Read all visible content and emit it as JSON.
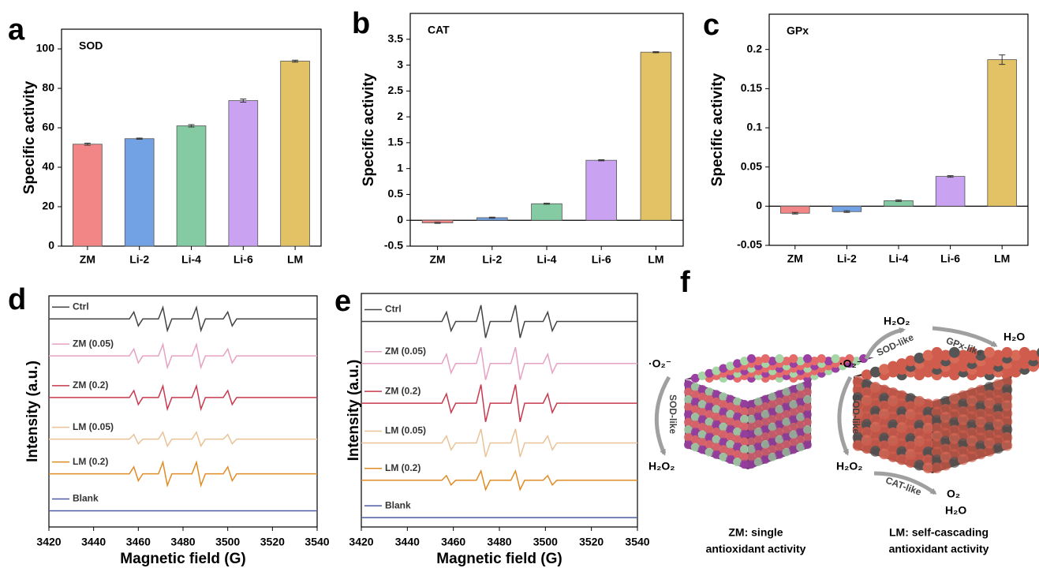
{
  "chart_data": [
    {
      "type": "bar",
      "panel": "a",
      "annotation": "SOD",
      "ylabel": "Specific activity",
      "categories": [
        "ZM",
        "Li-2",
        "Li-4",
        "Li-6",
        "LM"
      ],
      "values": [
        51.7,
        54.5,
        61,
        73.8,
        93.8
      ],
      "errors": [
        0.5,
        0.3,
        0.6,
        0.8,
        0.5
      ],
      "colors": [
        "#f28585",
        "#72a2e4",
        "#84caa2",
        "#c9a3f2",
        "#e3c265"
      ],
      "ylim": [
        0,
        110
      ],
      "yticks": [
        0,
        20,
        40,
        60,
        80,
        100
      ]
    },
    {
      "type": "bar",
      "panel": "b",
      "annotation": "CAT",
      "ylabel": "Specific activity",
      "categories": [
        "ZM",
        "Li-2",
        "Li-4",
        "Li-6",
        "LM"
      ],
      "values": [
        -0.05,
        0.05,
        0.32,
        1.16,
        3.25
      ],
      "errors": [
        0.01,
        0.01,
        0.01,
        0.01,
        0.01
      ],
      "colors": [
        "#f28585",
        "#72a2e4",
        "#84caa2",
        "#c9a3f2",
        "#e3c265"
      ],
      "ylim": [
        -0.5,
        4
      ],
      "yticks": [
        -0.5,
        0,
        0.5,
        1,
        1.5,
        2,
        2.5,
        3,
        3.5
      ]
    },
    {
      "type": "bar",
      "panel": "c",
      "annotation": "GPx",
      "ylabel": "Specific activity",
      "categories": [
        "ZM",
        "Li-2",
        "Li-4",
        "Li-6",
        "LM"
      ],
      "values": [
        -0.009,
        -0.007,
        0.007,
        0.038,
        0.187
      ],
      "errors": [
        0.001,
        0.001,
        0.001,
        0.001,
        0.006
      ],
      "colors": [
        "#f28585",
        "#72a2e4",
        "#84caa2",
        "#c9a3f2",
        "#e3c265"
      ],
      "ylim": [
        -0.05,
        0.245
      ],
      "yticks": [
        -0.05,
        0,
        0.05,
        0.1,
        0.15,
        0.2
      ]
    },
    {
      "type": "line",
      "panel": "d",
      "xlabel": "Magnetic field (G)",
      "ylabel": "Intensity (a.u.)",
      "x": [
        3420,
        3456,
        3458,
        3460,
        3462,
        3469,
        3471,
        3473,
        3475,
        3484,
        3486,
        3488,
        3490,
        3498,
        3500,
        3502,
        3504,
        3540
      ],
      "series": [
        {
          "name": "Ctrl",
          "color": "#444444",
          "values": [
            90,
            90,
            93,
            87,
            90,
            90,
            95,
            85,
            90,
            90,
            95,
            85,
            90,
            90,
            93,
            87,
            90,
            90
          ]
        },
        {
          "name": "ZM (0.05)",
          "color": "#e6a2c2",
          "values": [
            74,
            74,
            77,
            71,
            74,
            74,
            79,
            69,
            74,
            74,
            79,
            69,
            74,
            74,
            77,
            71,
            74,
            74
          ]
        },
        {
          "name": "ZM (0.2)",
          "color": "#c8394e",
          "values": [
            56,
            56,
            59,
            53,
            56,
            56,
            61,
            51,
            56,
            56,
            61,
            51,
            56,
            56,
            59,
            53,
            56,
            56
          ]
        },
        {
          "name": "LM (0.05)",
          "color": "#e9c397",
          "values": [
            38,
            38,
            40,
            36,
            38,
            38,
            41,
            35,
            38,
            38,
            41,
            35,
            38,
            38,
            40,
            36,
            38,
            38
          ]
        },
        {
          "name": "LM (0.2)",
          "color": "#e08c25",
          "values": [
            23,
            23,
            26,
            20,
            23,
            23,
            28,
            18,
            23,
            23,
            28,
            18,
            23,
            23,
            26,
            20,
            23,
            23
          ]
        },
        {
          "name": "Blank",
          "color": "#4d5ba3",
          "values": [
            7,
            7,
            7,
            7,
            7,
            7,
            7,
            7,
            7,
            7,
            7,
            7,
            7,
            7,
            7,
            7,
            7,
            7
          ]
        }
      ],
      "xlim": [
        3420,
        3540
      ],
      "xticks": [
        3420,
        3440,
        3460,
        3480,
        3500,
        3520,
        3540
      ],
      "ylim": [
        0,
        100
      ]
    },
    {
      "type": "line",
      "panel": "e",
      "xlabel": "Magnetic field (G)",
      "ylabel": "Intensity (a.u.)",
      "x": [
        3420,
        3455,
        3457,
        3459,
        3461,
        3470,
        3472,
        3474,
        3476,
        3485,
        3487,
        3489,
        3491,
        3499,
        3501,
        3503,
        3505,
        3540
      ],
      "series": [
        {
          "name": "Ctrl",
          "color": "#444444",
          "values": [
            88,
            88,
            92,
            84,
            88,
            88,
            95,
            81,
            88,
            88,
            95,
            81,
            88,
            88,
            92,
            84,
            88,
            88
          ]
        },
        {
          "name": "ZM (0.05)",
          "color": "#e6a2c2",
          "values": [
            70,
            70,
            74,
            66,
            70,
            70,
            77,
            63,
            70,
            70,
            77,
            63,
            70,
            70,
            74,
            66,
            70,
            70
          ]
        },
        {
          "name": "ZM (0.2)",
          "color": "#c8394e",
          "values": [
            53,
            53,
            57,
            49,
            53,
            53,
            61,
            45,
            53,
            53,
            61,
            45,
            53,
            53,
            57,
            49,
            53,
            53
          ]
        },
        {
          "name": "LM (0.05)",
          "color": "#e9c397",
          "values": [
            36,
            36,
            39,
            33,
            36,
            36,
            42,
            30,
            36,
            36,
            42,
            30,
            36,
            36,
            39,
            33,
            36,
            36
          ]
        },
        {
          "name": "LM (0.2)",
          "color": "#e08c25",
          "values": [
            20,
            20,
            22,
            18,
            20,
            20,
            24,
            16,
            20,
            20,
            24,
            16,
            20,
            20,
            22,
            18,
            20,
            20
          ]
        },
        {
          "name": "Blank",
          "color": "#4d5ba3",
          "values": [
            4,
            4,
            4,
            4,
            4,
            4,
            4,
            4,
            4,
            4,
            4,
            4,
            4,
            4,
            4,
            4,
            4,
            4
          ]
        }
      ],
      "xlim": [
        3420,
        3540
      ],
      "xticks": [
        3420,
        3440,
        3460,
        3480,
        3500,
        3520,
        3540
      ],
      "ylim": [
        0,
        100
      ]
    }
  ],
  "diagram": {
    "panel": "f",
    "zm": {
      "reactant": "·O₂⁻",
      "arrow": "SOD-like",
      "product": "H₂O₂",
      "caption": [
        "ZM: single",
        "antioxidant activity"
      ]
    },
    "lm": {
      "reactant": "·O₂⁻",
      "sod_top": "SOD-like",
      "h2o2_top": "H₂O₂",
      "gpx": "GPx-like",
      "h2o_top": "H₂O",
      "sod_side": "SOD-like",
      "h2o2_bottom": "H₂O₂",
      "cat": "CAT-like",
      "o2": "O₂",
      "h2o_bottom": "H₂O",
      "caption": [
        "LM: self-cascading",
        "antioxidant activity"
      ]
    }
  }
}
